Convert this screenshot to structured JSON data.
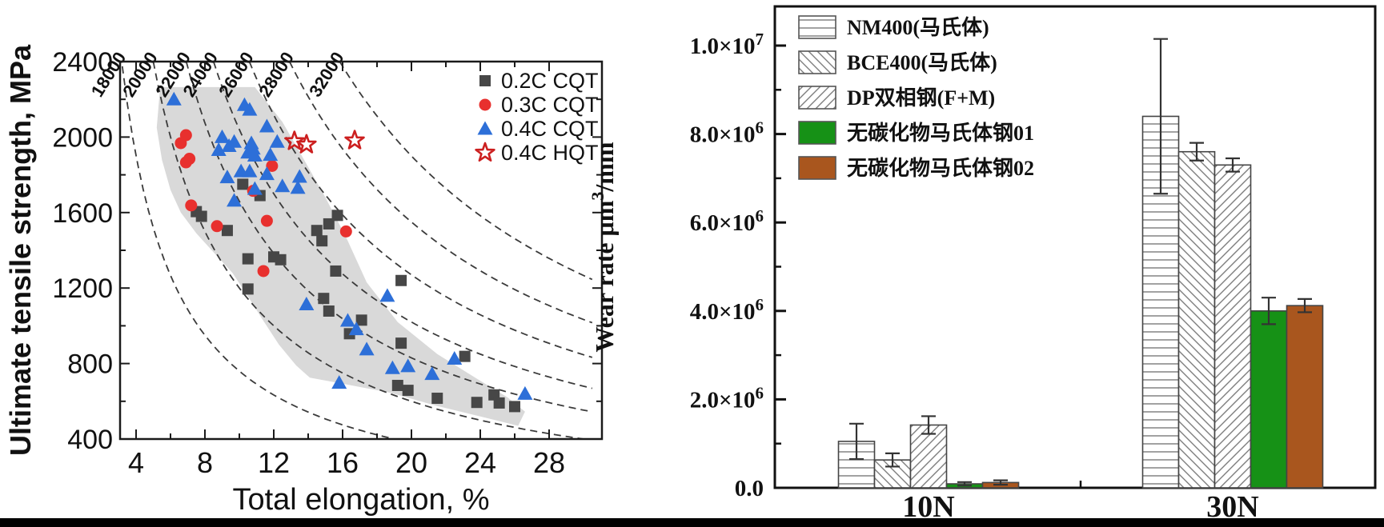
{
  "figure": {
    "background": "#ffffff",
    "bottom_border_color": "#000000"
  },
  "chart_data": [
    {
      "id": "strength-elongation",
      "type": "scatter",
      "title": "",
      "xlabel": "Total elongation, %",
      "ylabel": "Ultimate tensile strength, MPa",
      "xlim": [
        3,
        31
      ],
      "ylim": [
        400,
        2400
      ],
      "xticks": [
        4,
        8,
        12,
        16,
        20,
        24,
        28
      ],
      "yticks": [
        400,
        800,
        1200,
        1600,
        2000,
        2400
      ],
      "grid": false,
      "legend_position": "top-right-inside",
      "iso_product_curve_labels": [
        "18000",
        "20000",
        "22000",
        "24000",
        "26000",
        "28000",
        "32000"
      ],
      "band_color": "#d9d9d9",
      "band_polygon": [
        [
          5.4,
          2265
        ],
        [
          10.9,
          2265
        ],
        [
          12.5,
          2080
        ],
        [
          13.7,
          1890
        ],
        [
          15.0,
          1680
        ],
        [
          16.2,
          1470
        ],
        [
          17.4,
          1230
        ],
        [
          19.2,
          1020
        ],
        [
          21.5,
          850
        ],
        [
          23.8,
          720
        ],
        [
          25.6,
          620
        ],
        [
          26.6,
          545
        ],
        [
          26.2,
          470
        ],
        [
          24.0,
          520
        ],
        [
          21.5,
          575
        ],
        [
          18.8,
          645
        ],
        [
          16.2,
          690
        ],
        [
          14.1,
          725
        ],
        [
          13.3,
          790
        ],
        [
          12.3,
          900
        ],
        [
          11.3,
          1040
        ],
        [
          10.4,
          1170
        ],
        [
          9.6,
          1280
        ],
        [
          8.6,
          1380
        ],
        [
          7.5,
          1490
        ],
        [
          6.6,
          1600
        ],
        [
          6.0,
          1720
        ],
        [
          5.5,
          1880
        ],
        [
          5.2,
          2050
        ]
      ],
      "series": [
        {
          "name": "0.2C CQT",
          "marker": "square",
          "color": "#474747",
          "points": [
            [
              10.2,
              1750
            ],
            [
              11.2,
              1690
            ],
            [
              7.5,
              1605
            ],
            [
              7.8,
              1580
            ],
            [
              9.3,
              1505
            ],
            [
              14.5,
              1505
            ],
            [
              15.2,
              1540
            ],
            [
              15.7,
              1585
            ],
            [
              14.8,
              1450
            ],
            [
              10.5,
              1355
            ],
            [
              12.0,
              1365
            ],
            [
              12.4,
              1350
            ],
            [
              15.6,
              1290
            ],
            [
              10.5,
              1195
            ],
            [
              14.9,
              1145
            ],
            [
              15.2,
              1078
            ],
            [
              16.4,
              958
            ],
            [
              19.4,
              1240
            ],
            [
              17.1,
              1030
            ],
            [
              19.4,
              908
            ],
            [
              23.1,
              838
            ],
            [
              19.2,
              684
            ],
            [
              19.8,
              658
            ],
            [
              21.5,
              616
            ],
            [
              23.8,
              594
            ],
            [
              24.8,
              634
            ],
            [
              25.1,
              591
            ],
            [
              26.0,
              572
            ]
          ]
        },
        {
          "name": "0.3C CQT",
          "marker": "circle",
          "color": "#e8302e",
          "points": [
            [
              6.9,
              2010
            ],
            [
              6.6,
              1968
            ],
            [
              7.1,
              1885
            ],
            [
              6.9,
              1866
            ],
            [
              11.9,
              1847
            ],
            [
              10.8,
              1715
            ],
            [
              7.2,
              1638
            ],
            [
              8.7,
              1528
            ],
            [
              11.6,
              1556
            ],
            [
              16.2,
              1500
            ],
            [
              11.4,
              1290
            ]
          ]
        },
        {
          "name": "0.4C CQT",
          "marker": "triangle",
          "color": "#2d6fd8",
          "points": [
            [
              6.2,
              2200
            ],
            [
              10.3,
              2170
            ],
            [
              10.6,
              2145
            ],
            [
              11.6,
              2057
            ],
            [
              9.0,
              2000
            ],
            [
              9.7,
              1975
            ],
            [
              8.8,
              1932
            ],
            [
              9.4,
              1953
            ],
            [
              10.7,
              1968
            ],
            [
              10.8,
              1939
            ],
            [
              10.5,
              1918
            ],
            [
              10.9,
              1902
            ],
            [
              12.2,
              1975
            ],
            [
              11.8,
              1906
            ],
            [
              9.3,
              1787
            ],
            [
              10.1,
              1819
            ],
            [
              10.6,
              1819
            ],
            [
              11.6,
              1804
            ],
            [
              13.5,
              1790
            ],
            [
              10.9,
              1726
            ],
            [
              12.5,
              1740
            ],
            [
              13.4,
              1731
            ],
            [
              9.7,
              1663
            ],
            [
              13.9,
              1114
            ],
            [
              16.3,
              1027
            ],
            [
              16.8,
              982
            ],
            [
              15.8,
              698
            ],
            [
              18.6,
              1159
            ],
            [
              17.4,
              875
            ],
            [
              18.9,
              776
            ],
            [
              19.8,
              786
            ],
            [
              21.2,
              745
            ],
            [
              22.5,
              826
            ],
            [
              26.6,
              640
            ]
          ]
        },
        {
          "name": "0.4C HQT",
          "marker": "open-star",
          "color": "#cc1f1f",
          "points": [
            [
              13.2,
              1978
            ],
            [
              13.9,
              1960
            ],
            [
              16.7,
              1982
            ]
          ]
        }
      ]
    },
    {
      "id": "wear-rate",
      "type": "bar",
      "title": "",
      "xlabel": "",
      "ylabel": "Wear rate μm³/mm",
      "ylabel_parts": {
        "pre": "Wear rate μm",
        "sup": "3",
        "post": "/mm"
      },
      "categories": [
        "10N",
        "30N"
      ],
      "ylim": [
        0,
        10900000
      ],
      "ytick_values": [
        0,
        2000000,
        4000000,
        6000000,
        8000000,
        10000000
      ],
      "ytick_labels": [
        {
          "m": "0.0",
          "e": ""
        },
        {
          "m": "2.0×10",
          "e": "6"
        },
        {
          "m": "4.0×10",
          "e": "6"
        },
        {
          "m": "6.0×10",
          "e": "6"
        },
        {
          "m": "8.0×10",
          "e": "6"
        },
        {
          "m": "1.0×10",
          "e": "7"
        }
      ],
      "grid": false,
      "legend_position": "top-left-inside",
      "series": [
        {
          "name": "NM400(马氏体)",
          "pattern": "hlines",
          "color": "#ffffff",
          "values": [
            1050000,
            8400000
          ],
          "errors": [
            400000,
            1750000
          ]
        },
        {
          "name": "BCE400(马氏体)",
          "pattern": "bslash",
          "color": "#ffffff",
          "values": [
            630000,
            7600000
          ],
          "errors": [
            150000,
            200000
          ]
        },
        {
          "name": "DP双相钢(F+M)",
          "pattern": "fslash",
          "color": "#ffffff",
          "values": [
            1420000,
            7300000
          ],
          "errors": [
            200000,
            150000
          ]
        },
        {
          "name": "无碳化物马氏体钢01",
          "pattern": "solid",
          "color": "#169116",
          "values": [
            90000,
            4000000
          ],
          "errors": [
            40000,
            300000
          ]
        },
        {
          "name": "无碳化物马氏体钢02",
          "pattern": "solid",
          "color": "#a9561e",
          "values": [
            120000,
            4120000
          ],
          "errors": [
            50000,
            150000
          ]
        }
      ]
    }
  ]
}
